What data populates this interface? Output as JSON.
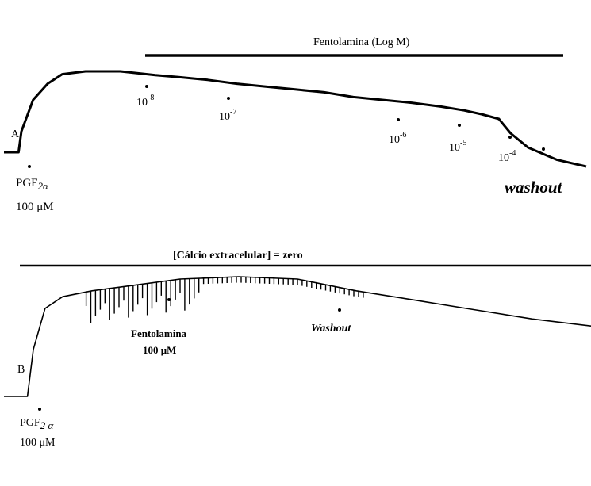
{
  "panel_a": {
    "letter": "A",
    "bar_label": "Fentolamina (Log M)",
    "agonist_name": "PGF",
    "agonist_sub": "2α",
    "agonist_dose": "100 μM",
    "dose_labels": [
      {
        "base": "10",
        "exp": "-8"
      },
      {
        "base": "10",
        "exp": "-7"
      },
      {
        "base": "10",
        "exp": "-6"
      },
      {
        "base": "10",
        "exp": "-5"
      },
      {
        "base": "10",
        "exp": "-4"
      }
    ],
    "washout": "washout"
  },
  "panel_b": {
    "letter": "B",
    "bar_label": "[Cálcio extracelular] = zero",
    "agonist_name": "PGF",
    "agonist_sub": "2 α",
    "agonist_dose": "100 μM",
    "drug_name": "Fentolamina",
    "drug_dose": "100 μM",
    "washout": "Washout"
  },
  "chart_data": [
    {
      "type": "line",
      "panel": "A",
      "title": "Fentolamina (Log M)",
      "xlabel": "",
      "ylabel": "",
      "grid": false,
      "series": [
        {
          "x": [
            0,
            5,
            6,
            10,
            15,
            20,
            28,
            40,
            52,
            60,
            70,
            80,
            90,
            100,
            110,
            120,
            130,
            140,
            150,
            158,
            164,
            170,
            174,
            180,
            190,
            200
          ],
          "y": [
            0.0,
            0.0,
            0.22,
            0.55,
            0.72,
            0.82,
            0.85,
            0.85,
            0.81,
            0.79,
            0.76,
            0.72,
            0.69,
            0.66,
            0.63,
            0.58,
            0.55,
            0.52,
            0.48,
            0.44,
            0.4,
            0.35,
            0.2,
            0.05,
            -0.08,
            -0.15
          ]
        }
      ],
      "events": [
        {
          "x": 5,
          "label": "PGF2α 100 μM"
        },
        {
          "x": 52,
          "label": "10-8"
        },
        {
          "x": 78,
          "label": "10-7"
        },
        {
          "x": 134,
          "label": "10-6"
        },
        {
          "x": 155,
          "label": "10-5"
        },
        {
          "x": 172,
          "label": "10-4"
        },
        {
          "x": 185,
          "label": "washout"
        }
      ]
    },
    {
      "type": "line",
      "panel": "B",
      "title": "[Cálcio extracelular] = zero",
      "xlabel": "",
      "ylabel": "",
      "grid": false,
      "series": [
        {
          "x": [
            0,
            8,
            10,
            14,
            20,
            30,
            45,
            60,
            80,
            100,
            120,
            140,
            160,
            180,
            200
          ],
          "y": [
            0.0,
            0.0,
            0.4,
            0.75,
            0.85,
            0.9,
            0.95,
            1.0,
            1.02,
            1.0,
            0.9,
            0.82,
            0.74,
            0.66,
            0.6
          ]
        }
      ],
      "events": [
        {
          "x": 8,
          "label": "PGF2α 100 μM"
        },
        {
          "x": 40,
          "label": "Fentolamina 100 μM"
        },
        {
          "x": 110,
          "label": "Washout"
        }
      ]
    }
  ]
}
